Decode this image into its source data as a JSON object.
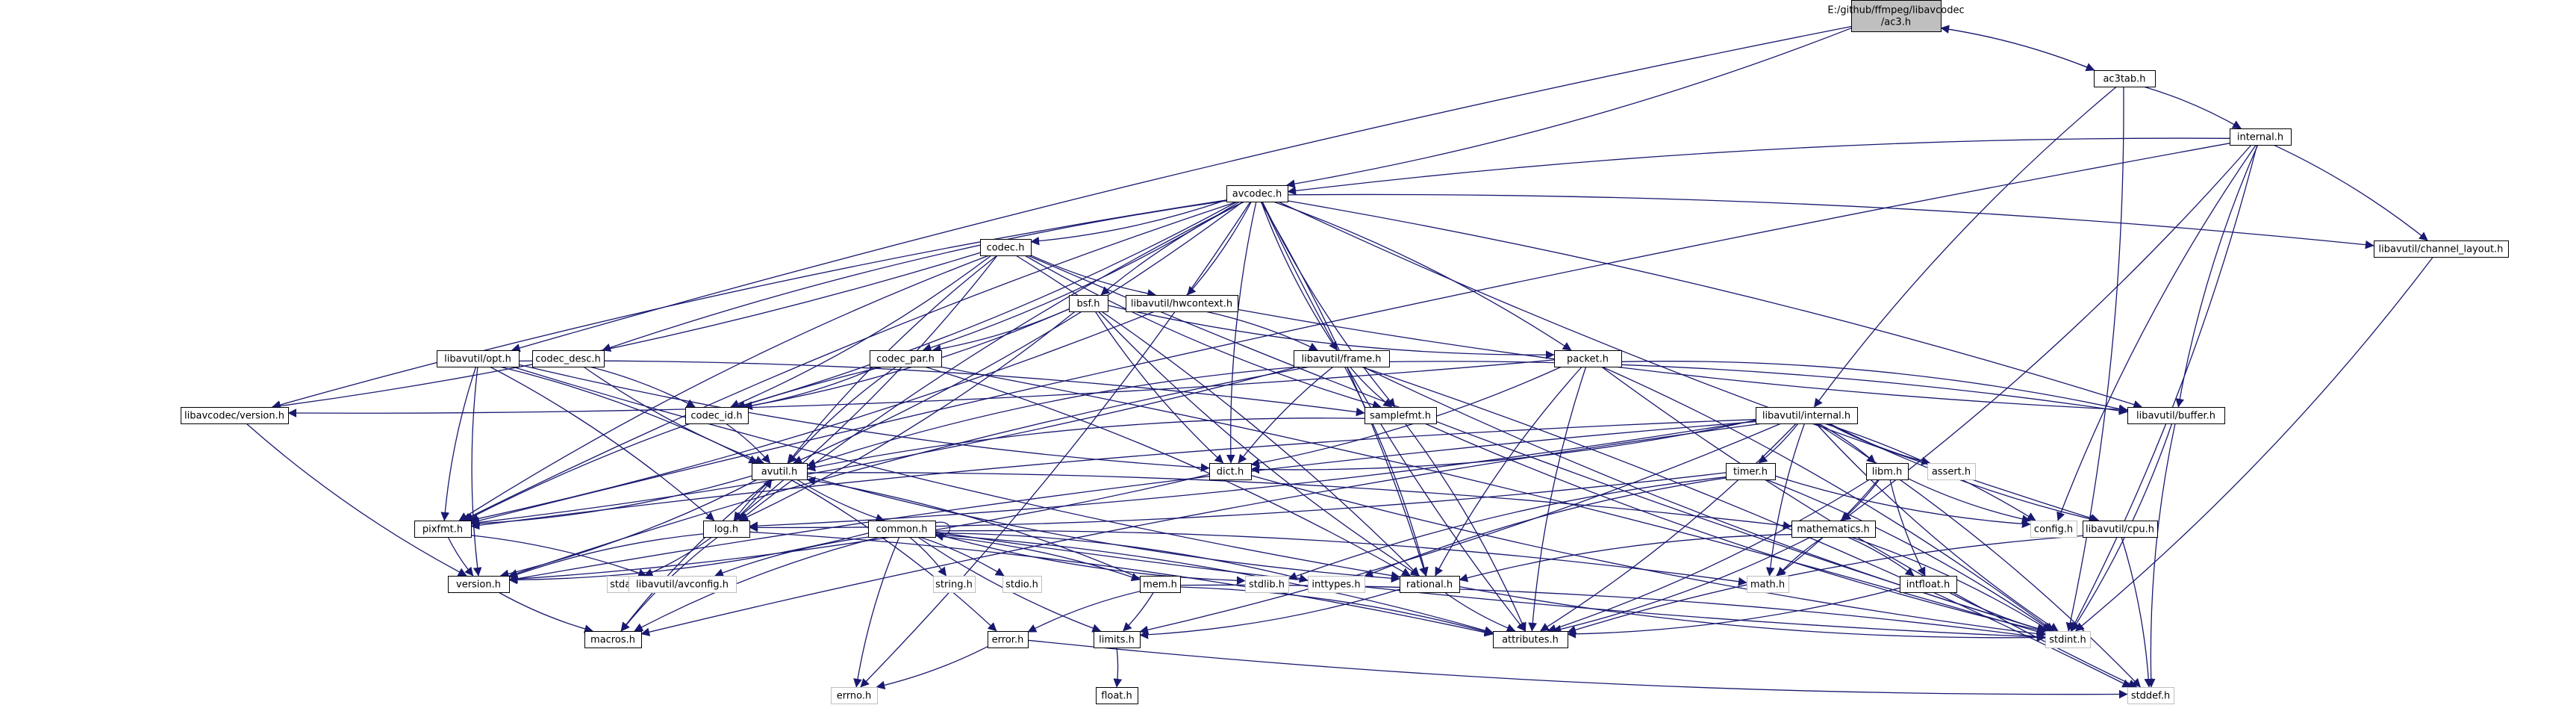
{
  "nodes": [
    {
      "id": "root",
      "lines": [
        "E:/github/ffmpeg/libavcodec",
        "/ac3.h"
      ],
      "style": "root"
    },
    {
      "id": "ac3tab",
      "lines": [
        "ac3tab.h"
      ],
      "style": "normal"
    },
    {
      "id": "internal",
      "lines": [
        "internal.h"
      ],
      "style": "normal"
    },
    {
      "id": "avcodec",
      "lines": [
        "avcodec.h"
      ],
      "style": "normal"
    },
    {
      "id": "chlayout",
      "lines": [
        "libavutil/channel_layout.h"
      ],
      "style": "normal"
    },
    {
      "id": "codec",
      "lines": [
        "codec.h"
      ],
      "style": "normal"
    },
    {
      "id": "bsf",
      "lines": [
        "bsf.h"
      ],
      "style": "normal"
    },
    {
      "id": "hwcontext",
      "lines": [
        "libavutil/hwcontext.h"
      ],
      "style": "normal"
    },
    {
      "id": "frame",
      "lines": [
        "libavutil/frame.h"
      ],
      "style": "normal"
    },
    {
      "id": "packet",
      "lines": [
        "packet.h"
      ],
      "style": "normal"
    },
    {
      "id": "opt",
      "lines": [
        "libavutil/opt.h"
      ],
      "style": "normal"
    },
    {
      "id": "codecdesc",
      "lines": [
        "codec_desc.h"
      ],
      "style": "normal"
    },
    {
      "id": "codecpar",
      "lines": [
        "codec_par.h"
      ],
      "style": "normal"
    },
    {
      "id": "lavcversion",
      "lines": [
        "libavcodec/version.h"
      ],
      "style": "normal"
    },
    {
      "id": "codecid",
      "lines": [
        "codec_id.h"
      ],
      "style": "normal"
    },
    {
      "id": "samplefmt",
      "lines": [
        "samplefmt.h"
      ],
      "style": "normal"
    },
    {
      "id": "buffer",
      "lines": [
        "libavutil/buffer.h"
      ],
      "style": "normal"
    },
    {
      "id": "lavuinternal",
      "lines": [
        "libavutil/internal.h"
      ],
      "style": "normal"
    },
    {
      "id": "avutil",
      "lines": [
        "avutil.h"
      ],
      "style": "normal"
    },
    {
      "id": "dict",
      "lines": [
        "dict.h"
      ],
      "style": "normal"
    },
    {
      "id": "timer",
      "lines": [
        "timer.h"
      ],
      "style": "normal"
    },
    {
      "id": "libm",
      "lines": [
        "libm.h"
      ],
      "style": "normal"
    },
    {
      "id": "assert",
      "lines": [
        "assert.h"
      ],
      "style": "gray"
    },
    {
      "id": "pixfmt",
      "lines": [
        "pixfmt.h"
      ],
      "style": "normal"
    },
    {
      "id": "log",
      "lines": [
        "log.h"
      ],
      "style": "normal"
    },
    {
      "id": "common",
      "lines": [
        "common.h"
      ],
      "style": "normal"
    },
    {
      "id": "mathematics",
      "lines": [
        "mathematics.h"
      ],
      "style": "normal"
    },
    {
      "id": "config",
      "lines": [
        "config.h"
      ],
      "style": "gray"
    },
    {
      "id": "cpu",
      "lines": [
        "libavutil/cpu.h"
      ],
      "style": "normal"
    },
    {
      "id": "version",
      "lines": [
        "version.h"
      ],
      "style": "normal"
    },
    {
      "id": "stdarg",
      "lines": [
        "stdarg.h"
      ],
      "style": "gray"
    },
    {
      "id": "avconfig",
      "lines": [
        "libavutil/avconfig.h"
      ],
      "style": "gray"
    },
    {
      "id": "string",
      "lines": [
        "string.h"
      ],
      "style": "gray"
    },
    {
      "id": "stdio",
      "lines": [
        "stdio.h"
      ],
      "style": "gray"
    },
    {
      "id": "mem",
      "lines": [
        "mem.h"
      ],
      "style": "normal"
    },
    {
      "id": "stdlib",
      "lines": [
        "stdlib.h"
      ],
      "style": "gray"
    },
    {
      "id": "inttypes",
      "lines": [
        "inttypes.h"
      ],
      "style": "gray"
    },
    {
      "id": "rational",
      "lines": [
        "rational.h"
      ],
      "style": "normal"
    },
    {
      "id": "mathh",
      "lines": [
        "math.h"
      ],
      "style": "gray"
    },
    {
      "id": "intfloat",
      "lines": [
        "intfloat.h"
      ],
      "style": "normal"
    },
    {
      "id": "macros",
      "lines": [
        "macros.h"
      ],
      "style": "normal"
    },
    {
      "id": "error",
      "lines": [
        "error.h"
      ],
      "style": "normal"
    },
    {
      "id": "limits",
      "lines": [
        "limits.h"
      ],
      "style": "normal"
    },
    {
      "id": "attributes",
      "lines": [
        "attributes.h"
      ],
      "style": "normal"
    },
    {
      "id": "stdint",
      "lines": [
        "stdint.h"
      ],
      "style": "gray"
    },
    {
      "id": "errno",
      "lines": [
        "errno.h"
      ],
      "style": "gray"
    },
    {
      "id": "float",
      "lines": [
        "float.h"
      ],
      "style": "normal"
    },
    {
      "id": "stddef",
      "lines": [
        "stddef.h"
      ],
      "style": "gray"
    }
  ],
  "edges": [
    [
      "root",
      "ac3tab"
    ],
    [
      "ac3tab",
      "root"
    ],
    [
      "root",
      "avcodec"
    ],
    [
      "root",
      "opt"
    ],
    [
      "ac3tab",
      "internal"
    ],
    [
      "ac3tab",
      "lavuinternal"
    ],
    [
      "ac3tab",
      "stdint"
    ],
    [
      "internal",
      "avcodec"
    ],
    [
      "internal",
      "chlayout"
    ],
    [
      "internal",
      "buffer"
    ],
    [
      "internal",
      "mathematics"
    ],
    [
      "internal",
      "config"
    ],
    [
      "internal",
      "stdint"
    ],
    [
      "internal",
      "pixfmt"
    ],
    [
      "avcodec",
      "codec"
    ],
    [
      "avcodec",
      "bsf"
    ],
    [
      "avcodec",
      "hwcontext"
    ],
    [
      "avcodec",
      "frame"
    ],
    [
      "avcodec",
      "packet"
    ],
    [
      "avcodec",
      "codecdesc"
    ],
    [
      "avcodec",
      "codecpar"
    ],
    [
      "avcodec",
      "lavcversion"
    ],
    [
      "avcodec",
      "codecid"
    ],
    [
      "avcodec",
      "samplefmt"
    ],
    [
      "avcodec",
      "buffer"
    ],
    [
      "avcodec",
      "dict"
    ],
    [
      "avcodec",
      "avutil"
    ],
    [
      "avcodec",
      "pixfmt"
    ],
    [
      "avcodec",
      "rational"
    ],
    [
      "avcodec",
      "attributes"
    ],
    [
      "avcodec",
      "chlayout"
    ],
    [
      "avcodec",
      "cpu"
    ],
    [
      "avcodec",
      "errno"
    ],
    [
      "avcodec",
      "log"
    ],
    [
      "chlayout",
      "stdint"
    ],
    [
      "codec",
      "hwcontext"
    ],
    [
      "codec",
      "codecid"
    ],
    [
      "codec",
      "avutil"
    ],
    [
      "codec",
      "log"
    ],
    [
      "codec",
      "pixfmt"
    ],
    [
      "codec",
      "rational"
    ],
    [
      "codec",
      "samplefmt"
    ],
    [
      "codec",
      "lavcversion"
    ],
    [
      "codec",
      "stdint"
    ],
    [
      "bsf",
      "codecpar"
    ],
    [
      "bsf",
      "packet"
    ],
    [
      "bsf",
      "codecid"
    ],
    [
      "bsf",
      "dict"
    ],
    [
      "bsf",
      "log"
    ],
    [
      "bsf",
      "rational"
    ],
    [
      "hwcontext",
      "frame"
    ],
    [
      "hwcontext",
      "buffer"
    ],
    [
      "hwcontext",
      "pixfmt"
    ],
    [
      "frame",
      "avutil"
    ],
    [
      "frame",
      "buffer"
    ],
    [
      "frame",
      "dict"
    ],
    [
      "frame",
      "rational"
    ],
    [
      "frame",
      "samplefmt"
    ],
    [
      "frame",
      "pixfmt"
    ],
    [
      "frame",
      "version"
    ],
    [
      "frame",
      "stddef"
    ],
    [
      "frame",
      "stdint"
    ],
    [
      "packet",
      "buffer"
    ],
    [
      "packet",
      "attributes"
    ],
    [
      "packet",
      "dict"
    ],
    [
      "packet",
      "rational"
    ],
    [
      "packet",
      "lavcversion"
    ],
    [
      "packet",
      "stddef"
    ],
    [
      "packet",
      "stdint"
    ],
    [
      "opt",
      "rational"
    ],
    [
      "opt",
      "avutil"
    ],
    [
      "opt",
      "dict"
    ],
    [
      "opt",
      "log"
    ],
    [
      "opt",
      "pixfmt"
    ],
    [
      "opt",
      "samplefmt"
    ],
    [
      "opt",
      "version"
    ],
    [
      "codecdesc",
      "codecid"
    ],
    [
      "codecdesc",
      "avutil"
    ],
    [
      "codecpar",
      "codecid"
    ],
    [
      "codecpar",
      "avutil"
    ],
    [
      "codecpar",
      "rational"
    ],
    [
      "codecpar",
      "pixfmt"
    ],
    [
      "codecpar",
      "stdint"
    ],
    [
      "lavcversion",
      "version"
    ],
    [
      "codecid",
      "avutil"
    ],
    [
      "samplefmt",
      "avutil"
    ],
    [
      "samplefmt",
      "attributes"
    ],
    [
      "samplefmt",
      "stdint"
    ],
    [
      "buffer",
      "stdint"
    ],
    [
      "buffer",
      "stddef"
    ],
    [
      "lavuinternal",
      "timer"
    ],
    [
      "lavuinternal",
      "cpu"
    ],
    [
      "lavuinternal",
      "dict"
    ],
    [
      "lavuinternal",
      "pixfmt"
    ],
    [
      "lavuinternal",
      "libm"
    ],
    [
      "lavuinternal",
      "assert"
    ],
    [
      "lavuinternal",
      "config"
    ],
    [
      "lavuinternal",
      "stdint"
    ],
    [
      "lavuinternal",
      "stddef"
    ],
    [
      "lavuinternal",
      "macros"
    ],
    [
      "lavuinternal",
      "attributes"
    ],
    [
      "lavuinternal",
      "version"
    ],
    [
      "lavuinternal",
      "limits"
    ],
    [
      "lavuinternal",
      "mathh"
    ],
    [
      "lavuinternal",
      "log"
    ],
    [
      "avutil",
      "common"
    ],
    [
      "avutil",
      "error"
    ],
    [
      "avutil",
      "rational"
    ],
    [
      "avutil",
      "version"
    ],
    [
      "avutil",
      "macros"
    ],
    [
      "avutil",
      "mathematics"
    ],
    [
      "avutil",
      "log"
    ],
    [
      "avutil",
      "pixfmt"
    ],
    [
      "dict",
      "stdint"
    ],
    [
      "dict",
      "version"
    ],
    [
      "timer",
      "config"
    ],
    [
      "timer",
      "log"
    ],
    [
      "timer",
      "inttypes"
    ],
    [
      "timer",
      "stdint"
    ],
    [
      "timer",
      "stdlib"
    ],
    [
      "libm",
      "attributes"
    ],
    [
      "libm",
      "intfloat"
    ],
    [
      "libm",
      "mathematics"
    ],
    [
      "libm",
      "config"
    ],
    [
      "libm",
      "mathh"
    ],
    [
      "pixfmt",
      "version"
    ],
    [
      "pixfmt",
      "avconfig"
    ],
    [
      "log",
      "avutil"
    ],
    [
      "log",
      "attributes"
    ],
    [
      "log",
      "version"
    ],
    [
      "log",
      "stdarg"
    ],
    [
      "log",
      "macros"
    ],
    [
      "common",
      "attributes"
    ],
    [
      "common",
      "macros"
    ],
    [
      "common",
      "version"
    ],
    [
      "common",
      "avconfig"
    ],
    [
      "common",
      "mem"
    ],
    [
      "common",
      "errno"
    ],
    [
      "common",
      "inttypes"
    ],
    [
      "common",
      "limits"
    ],
    [
      "common",
      "mathh"
    ],
    [
      "common",
      "stdint"
    ],
    [
      "common",
      "stdio"
    ],
    [
      "common",
      "stdlib"
    ],
    [
      "common",
      "string"
    ],
    [
      "common",
      "common"
    ],
    [
      "mathematics",
      "stdint"
    ],
    [
      "mathematics",
      "mathh"
    ],
    [
      "mathematics",
      "attributes"
    ],
    [
      "mathematics",
      "rational"
    ],
    [
      "mathematics",
      "intfloat"
    ],
    [
      "cpu",
      "attributes"
    ],
    [
      "cpu",
      "stddef"
    ],
    [
      "version",
      "macros"
    ],
    [
      "mem",
      "attributes"
    ],
    [
      "mem",
      "error"
    ],
    [
      "mem",
      "limits"
    ],
    [
      "mem",
      "avutil"
    ],
    [
      "mem",
      "stdint"
    ],
    [
      "rational",
      "attributes"
    ],
    [
      "rational",
      "limits"
    ],
    [
      "rational",
      "stdint"
    ],
    [
      "intfloat",
      "attributes"
    ],
    [
      "intfloat",
      "stdint"
    ],
    [
      "error",
      "errno"
    ],
    [
      "error",
      "stddef"
    ],
    [
      "limits",
      "float"
    ]
  ]
}
